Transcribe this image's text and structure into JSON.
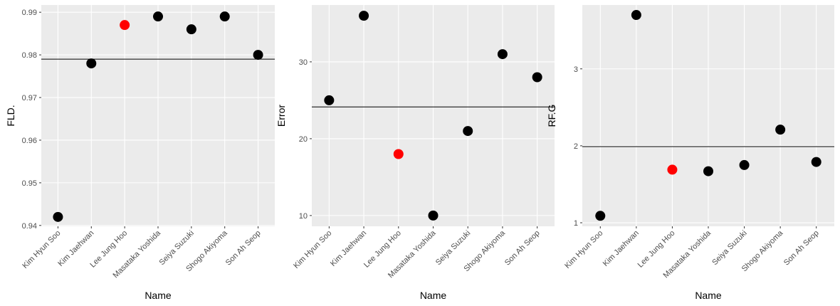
{
  "chart_data": [
    {
      "type": "scatter",
      "ylabel": "FLD.",
      "xlabel": "Name",
      "categories": [
        "Kim Hyun Soo",
        "Kim Jaehwan",
        "Lee Jung Hoo",
        "Masataka Yoshida",
        "Seiya Suzuki",
        "Shogo Akiyoma",
        "Son Ah Seop"
      ],
      "values": [
        0.942,
        0.978,
        0.987,
        0.989,
        0.986,
        0.989,
        0.98
      ],
      "point_colors": [
        "#000000",
        "#000000",
        "#ff0000",
        "#000000",
        "#000000",
        "#000000",
        "#000000"
      ],
      "hline": 0.979,
      "ylim": [
        0.9398,
        0.9917
      ],
      "yticks": [
        0.94,
        0.95,
        0.96,
        0.97,
        0.98,
        0.99
      ],
      "grid": true
    },
    {
      "type": "scatter",
      "ylabel": "Error",
      "xlabel": "Name",
      "categories": [
        "Kim Hyun Soo",
        "Kim Jaehwan",
        "Lee Jung Hoo",
        "Masataka Yoshida",
        "Seiya Suzuki",
        "Shogo Akiyoma",
        "Son Ah Seop"
      ],
      "values": [
        25,
        36,
        18,
        10,
        21,
        31,
        28
      ],
      "point_colors": [
        "#000000",
        "#000000",
        "#ff0000",
        "#000000",
        "#000000",
        "#000000",
        "#000000"
      ],
      "hline": 24.14,
      "ylim": [
        8.6,
        37.4
      ],
      "yticks": [
        10,
        20,
        30
      ],
      "grid": true
    },
    {
      "type": "scatter",
      "ylabel": "RF.G",
      "xlabel": "Name",
      "categories": [
        "Kim Hyun Soo",
        "Kim Jaehwan",
        "Lee Jung Hoo",
        "Masataka Yoshida",
        "Seiya Suzuki",
        "Shogo Akiyoma",
        "Son Ah Seop"
      ],
      "values": [
        1.09,
        3.7,
        1.69,
        1.67,
        1.75,
        2.21,
        1.79
      ],
      "point_colors": [
        "#000000",
        "#000000",
        "#ff0000",
        "#000000",
        "#000000",
        "#000000",
        "#000000"
      ],
      "hline": 1.99,
      "ylim": [
        0.954,
        3.83
      ],
      "yticks": [
        1,
        2,
        3
      ],
      "grid": true
    }
  ]
}
